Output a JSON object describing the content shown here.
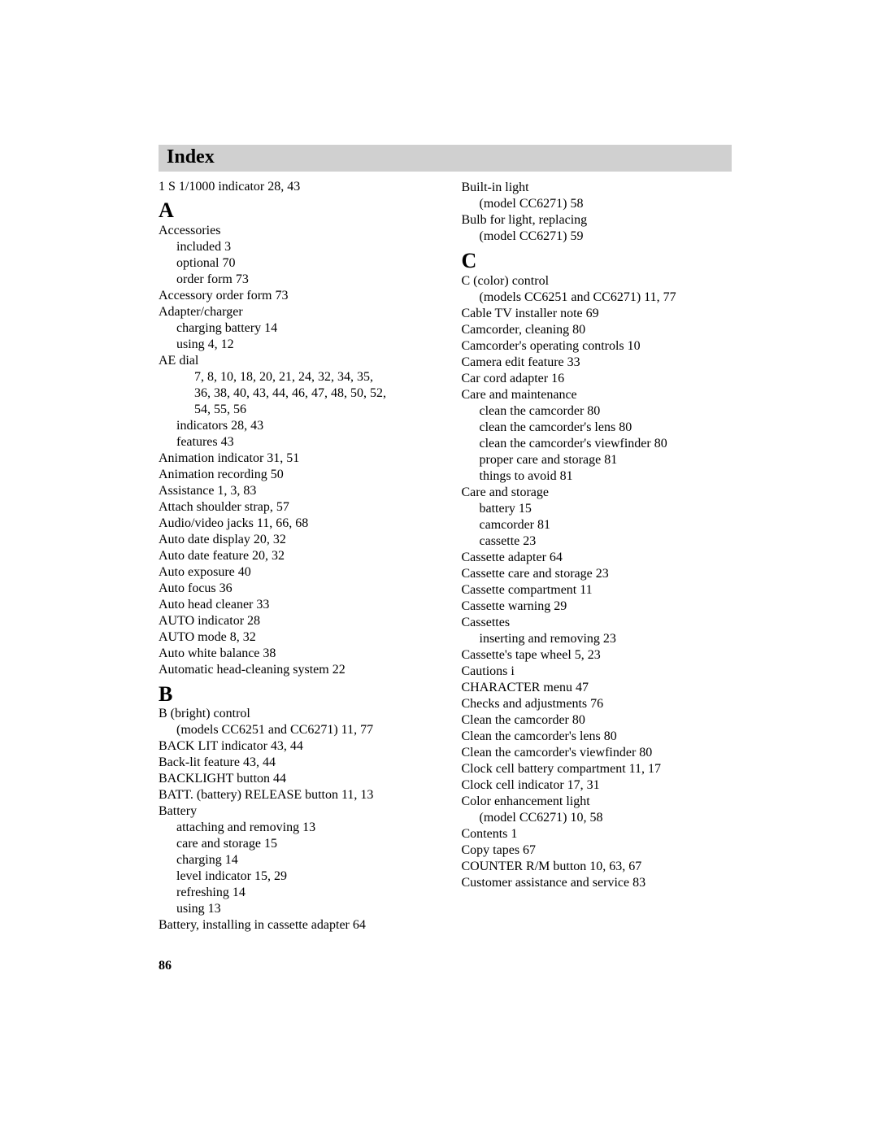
{
  "title": "Index",
  "page_number": "86",
  "colors": {
    "background": "#ffffff",
    "title_bar_bg": "#d0d0d0",
    "text": "#000000"
  },
  "typography": {
    "title_fontsize": 24,
    "title_weight": "bold",
    "section_letter_fontsize": 26,
    "section_letter_weight": "bold",
    "body_fontsize": 16,
    "body_line_height": 1.25,
    "font_family": "Times New Roman"
  },
  "left": {
    "lead_line": "1 S 1/1000 indicator  28,  43",
    "sections": [
      {
        "letter": "A",
        "entries": [
          {
            "indent": 0,
            "text": "Accessories"
          },
          {
            "indent": 1,
            "text": "included  3"
          },
          {
            "indent": 1,
            "text": "optional  70"
          },
          {
            "indent": 1,
            "text": "order form  73"
          },
          {
            "indent": 0,
            "text": "Accessory order form  73"
          },
          {
            "indent": 0,
            "text": "Adapter/charger"
          },
          {
            "indent": 1,
            "text": "charging battery  14"
          },
          {
            "indent": 1,
            "text": "using  4,  12"
          },
          {
            "indent": 0,
            "text": "AE dial"
          },
          {
            "indent": 2,
            "text": "7,  8,  10,  18,  20,  21,  24,  32,  34,  35,"
          },
          {
            "indent": 2,
            "text": "36,  38,  40,  43,  44,  46,  47,  48,  50,  52,"
          },
          {
            "indent": 2,
            "text": "54,  55,  56"
          },
          {
            "indent": 1,
            "text": "indicators  28, 43"
          },
          {
            "indent": 1,
            "text": "features  43"
          },
          {
            "indent": 0,
            "text": "Animation indicator  31,  51"
          },
          {
            "indent": 0,
            "text": "Animation recording  50"
          },
          {
            "indent": 0,
            "text": "Assistance  1,  3,  83"
          },
          {
            "indent": 0,
            "text": "Attach shoulder strap,  57"
          },
          {
            "indent": 0,
            "text": "Audio/video jacks  11,  66,  68"
          },
          {
            "indent": 0,
            "text": "Auto date display  20,  32"
          },
          {
            "indent": 0,
            "text": "Auto date feature  20,  32"
          },
          {
            "indent": 0,
            "text": "Auto exposure  40"
          },
          {
            "indent": 0,
            "text": "Auto focus  36"
          },
          {
            "indent": 0,
            "text": "Auto head cleaner  33"
          },
          {
            "indent": 0,
            "text": "AUTO indicator  28"
          },
          {
            "indent": 0,
            "text": "AUTO mode  8,  32"
          },
          {
            "indent": 0,
            "text": "Auto white balance  38"
          },
          {
            "indent": 0,
            "text": "Automatic head-cleaning system  22"
          }
        ]
      },
      {
        "letter": "B",
        "entries": [
          {
            "indent": 0,
            "text": "B (bright)  control"
          },
          {
            "indent": 1,
            "text": "(models CC6251 and CC6271)  11,  77"
          },
          {
            "indent": 0,
            "text": "BACK LIT indicator  43,  44"
          },
          {
            "indent": 0,
            "text": "Back-lit feature  43,  44"
          },
          {
            "indent": 0,
            "text": "BACKLIGHT button  44"
          },
          {
            "indent": 0,
            "text": "BATT. (battery) RELEASE button  11,  13"
          },
          {
            "indent": 0,
            "text": "Battery"
          },
          {
            "indent": 1,
            "text": "attaching and removing  13"
          },
          {
            "indent": 1,
            "text": "care and storage  15"
          },
          {
            "indent": 1,
            "text": "charging  14"
          },
          {
            "indent": 1,
            "text": "level indicator  15,  29"
          },
          {
            "indent": 1,
            "text": "refreshing  14"
          },
          {
            "indent": 1,
            "text": "using  13"
          },
          {
            "indent": 0,
            "text": "Battery, installing in cassette adapter  64"
          }
        ]
      }
    ]
  },
  "right": {
    "lead_block": [
      {
        "indent": 0,
        "text": "Built-in light"
      },
      {
        "indent": 1,
        "text": "(model CC6271)  58"
      },
      {
        "indent": 0,
        "text": "Bulb for light, replacing"
      },
      {
        "indent": 1,
        "text": "(model CC6271)  59"
      }
    ],
    "sections": [
      {
        "letter": "C",
        "entries": [
          {
            "indent": 0,
            "text": "C (color)  control"
          },
          {
            "indent": 1,
            "text": "(models CC6251 and CC6271)  11,  77"
          },
          {
            "indent": 0,
            "text": "Cable TV installer note  69"
          },
          {
            "indent": 0,
            "text": "Camcorder, cleaning  80"
          },
          {
            "indent": 0,
            "text": "Camcorder's operating controls  10"
          },
          {
            "indent": 0,
            "text": "Camera edit feature  33"
          },
          {
            "indent": 0,
            "text": "Car cord adapter  16"
          },
          {
            "indent": 0,
            "text": "Care and maintenance"
          },
          {
            "indent": 1,
            "text": "clean the camcorder  80"
          },
          {
            "indent": 1,
            "text": "clean the camcorder's lens  80"
          },
          {
            "indent": 1,
            "text": "clean the camcorder's viewfinder  80"
          },
          {
            "indent": 1,
            "text": "proper care and storage  81"
          },
          {
            "indent": 1,
            "text": "things to avoid  81"
          },
          {
            "indent": 0,
            "text": "Care and storage"
          },
          {
            "indent": 1,
            "text": "battery  15"
          },
          {
            "indent": 1,
            "text": "camcorder  81"
          },
          {
            "indent": 1,
            "text": "cassette  23"
          },
          {
            "indent": 0,
            "text": "Cassette adapter  64"
          },
          {
            "indent": 0,
            "text": "Cassette care and storage  23"
          },
          {
            "indent": 0,
            "text": "Cassette compartment  11"
          },
          {
            "indent": 0,
            "text": "Cassette warning  29"
          },
          {
            "indent": 0,
            "text": "Cassettes"
          },
          {
            "indent": 1,
            "text": "inserting and removing  23"
          },
          {
            "indent": 0,
            "text": "Cassette's tape wheel  5,  23"
          },
          {
            "indent": 0,
            "text": "Cautions  i"
          },
          {
            "indent": 0,
            "text": "CHARACTER menu  47"
          },
          {
            "indent": 0,
            "text": "Checks and adjustments  76"
          },
          {
            "indent": 0,
            "text": "Clean the camcorder  80"
          },
          {
            "indent": 0,
            "text": "Clean the camcorder's lens  80"
          },
          {
            "indent": 0,
            "text": "Clean the camcorder's viewfinder  80"
          },
          {
            "indent": 0,
            "text": "Clock cell battery compartment  11,  17"
          },
          {
            "indent": 0,
            "text": "Clock cell indicator  17,  31"
          },
          {
            "indent": 0,
            "text": "Color enhancement light"
          },
          {
            "indent": 1,
            "text": "(model CC6271)  10,  58"
          },
          {
            "indent": 0,
            "text": "Contents  1"
          },
          {
            "indent": 0,
            "text": "Copy tapes  67"
          },
          {
            "indent": 0,
            "text": "COUNTER R/M button  10,  63,  67"
          },
          {
            "indent": 0,
            "text": "Customer assistance and service  83"
          }
        ]
      }
    ]
  }
}
